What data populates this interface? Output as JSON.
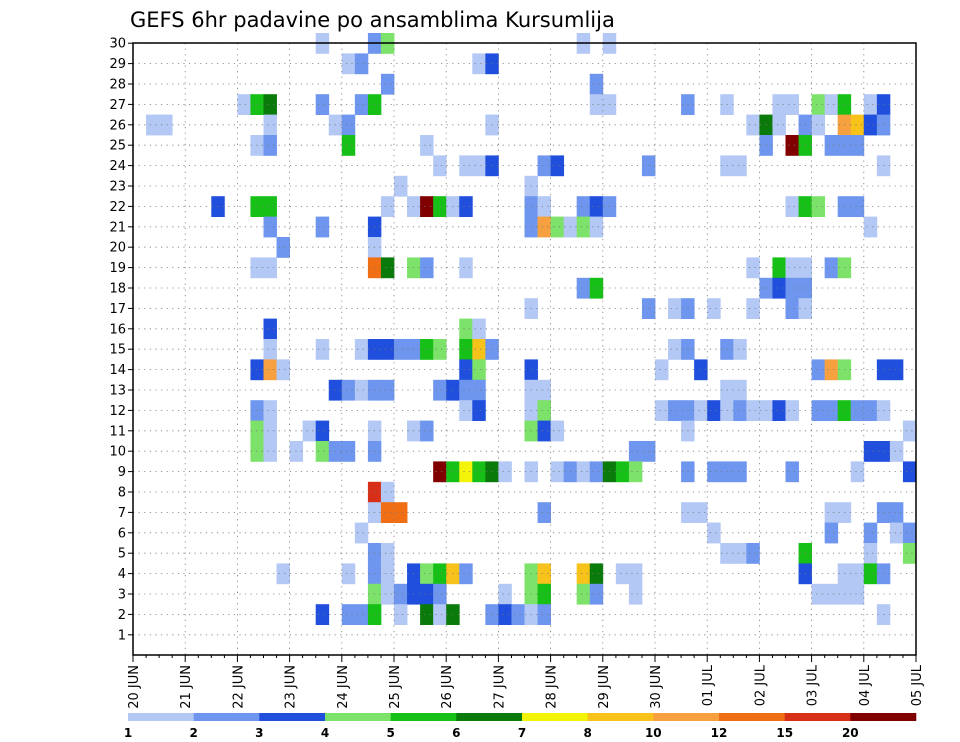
{
  "chart_data": {
    "type": "heatmap",
    "title": "GEFS 6hr padavine po ansamblima Kursumlija",
    "y_categories": [
      "1",
      "2",
      "3",
      "4",
      "5",
      "6",
      "7",
      "8",
      "9",
      "10",
      "11",
      "12",
      "13",
      "14",
      "15",
      "16",
      "17",
      "18",
      "19",
      "20",
      "21",
      "22",
      "23",
      "24",
      "25",
      "26",
      "27",
      "28",
      "29",
      "30"
    ],
    "x_tick_labels": [
      "20 JUN",
      "21 JUN",
      "22 JUN",
      "23 JUN",
      "24 JUN",
      "25 JUN",
      "26 JUN",
      "27 JUN",
      "28 JUN",
      "29 JUN",
      "30 JUN",
      "01 JUL",
      "02 JUL",
      "03 JUL",
      "04 JUL",
      "05 JUL"
    ],
    "x_axis_note": "60 six-hour steps from 20 JUN to 05 JUL",
    "grid": true,
    "legend": {
      "placement": "bottom",
      "labels": [
        "1",
        "2",
        "3",
        "4",
        "5",
        "6",
        "7",
        "8",
        "10",
        "12",
        "15",
        "20"
      ],
      "colors": [
        "#b3c8f5",
        "#6e96ee",
        "#1f4fdc",
        "#7de26a",
        "#16c016",
        "#0a7a0a",
        "#f4f40a",
        "#f7c21a",
        "#f7a040",
        "#f06e14",
        "#d83018",
        "#800000"
      ]
    },
    "cells": [
      [
        14,
        30,
        1
      ],
      [
        18,
        30,
        2
      ],
      [
        19,
        30,
        4
      ],
      [
        34,
        30,
        1
      ],
      [
        36,
        30,
        1
      ],
      [
        16,
        29,
        1
      ],
      [
        17,
        29,
        2
      ],
      [
        26,
        29,
        1
      ],
      [
        27,
        29,
        3
      ],
      [
        19,
        28,
        2
      ],
      [
        35,
        28,
        2
      ],
      [
        8,
        27,
        1
      ],
      [
        9,
        27,
        5
      ],
      [
        10,
        27,
        6
      ],
      [
        14,
        27,
        2
      ],
      [
        17,
        27,
        2
      ],
      [
        18,
        27,
        5
      ],
      [
        35,
        27,
        1
      ],
      [
        36,
        27,
        1
      ],
      [
        42,
        27,
        2
      ],
      [
        45,
        27,
        1
      ],
      [
        49,
        27,
        1
      ],
      [
        50,
        27,
        1
      ],
      [
        52,
        27,
        4
      ],
      [
        53,
        27,
        1
      ],
      [
        54,
        27,
        5
      ],
      [
        56,
        27,
        1
      ],
      [
        57,
        27,
        3
      ],
      [
        1,
        26,
        1
      ],
      [
        2,
        26,
        1
      ],
      [
        10,
        26,
        1
      ],
      [
        15,
        26,
        1
      ],
      [
        16,
        26,
        2
      ],
      [
        27,
        26,
        1
      ],
      [
        47,
        26,
        1
      ],
      [
        48,
        26,
        6
      ],
      [
        49,
        26,
        1
      ],
      [
        51,
        26,
        2
      ],
      [
        52,
        26,
        1
      ],
      [
        54,
        26,
        9
      ],
      [
        55,
        26,
        8
      ],
      [
        56,
        26,
        3
      ],
      [
        57,
        26,
        2
      ],
      [
        9,
        25,
        1
      ],
      [
        10,
        25,
        2
      ],
      [
        16,
        25,
        5
      ],
      [
        22,
        25,
        1
      ],
      [
        48,
        25,
        2
      ],
      [
        50,
        25,
        12
      ],
      [
        51,
        25,
        5
      ],
      [
        53,
        25,
        2
      ],
      [
        54,
        25,
        2
      ],
      [
        55,
        25,
        2
      ],
      [
        23,
        24,
        1
      ],
      [
        25,
        24,
        1
      ],
      [
        26,
        24,
        1
      ],
      [
        27,
        24,
        3
      ],
      [
        31,
        24,
        2
      ],
      [
        32,
        24,
        3
      ],
      [
        39,
        24,
        2
      ],
      [
        45,
        24,
        1
      ],
      [
        46,
        24,
        1
      ],
      [
        57,
        24,
        1
      ],
      [
        20,
        23,
        1
      ],
      [
        30,
        23,
        1
      ],
      [
        6,
        22,
        3
      ],
      [
        9,
        22,
        5
      ],
      [
        10,
        22,
        5
      ],
      [
        19,
        22,
        1
      ],
      [
        21,
        22,
        1
      ],
      [
        22,
        22,
        12
      ],
      [
        23,
        22,
        5
      ],
      [
        24,
        22,
        1
      ],
      [
        25,
        22,
        3
      ],
      [
        30,
        22,
        2
      ],
      [
        31,
        22,
        1
      ],
      [
        34,
        22,
        2
      ],
      [
        35,
        22,
        3
      ],
      [
        36,
        22,
        2
      ],
      [
        50,
        22,
        1
      ],
      [
        51,
        22,
        5
      ],
      [
        52,
        22,
        4
      ],
      [
        54,
        22,
        2
      ],
      [
        55,
        22,
        2
      ],
      [
        10,
        21,
        2
      ],
      [
        14,
        21,
        2
      ],
      [
        18,
        21,
        3
      ],
      [
        30,
        21,
        2
      ],
      [
        31,
        21,
        9
      ],
      [
        32,
        21,
        4
      ],
      [
        33,
        21,
        1
      ],
      [
        34,
        21,
        4
      ],
      [
        35,
        21,
        1
      ],
      [
        56,
        21,
        1
      ],
      [
        11,
        20,
        2
      ],
      [
        18,
        20,
        1
      ],
      [
        9,
        19,
        1
      ],
      [
        10,
        19,
        1
      ],
      [
        18,
        19,
        10
      ],
      [
        19,
        19,
        6
      ],
      [
        21,
        19,
        4
      ],
      [
        22,
        19,
        2
      ],
      [
        25,
        19,
        1
      ],
      [
        47,
        19,
        1
      ],
      [
        49,
        19,
        5
      ],
      [
        50,
        19,
        1
      ],
      [
        51,
        19,
        1
      ],
      [
        53,
        19,
        2
      ],
      [
        54,
        19,
        4
      ],
      [
        34,
        18,
        2
      ],
      [
        35,
        18,
        5
      ],
      [
        48,
        18,
        2
      ],
      [
        49,
        18,
        3
      ],
      [
        50,
        18,
        2
      ],
      [
        51,
        18,
        2
      ],
      [
        30,
        17,
        1
      ],
      [
        39,
        17,
        2
      ],
      [
        41,
        17,
        1
      ],
      [
        42,
        17,
        2
      ],
      [
        44,
        17,
        1
      ],
      [
        47,
        17,
        1
      ],
      [
        50,
        17,
        2
      ],
      [
        51,
        17,
        1
      ],
      [
        10,
        16,
        3
      ],
      [
        25,
        16,
        4
      ],
      [
        26,
        16,
        1
      ],
      [
        10,
        15,
        1
      ],
      [
        14,
        15,
        1
      ],
      [
        17,
        15,
        1
      ],
      [
        18,
        15,
        3
      ],
      [
        19,
        15,
        3
      ],
      [
        20,
        15,
        2
      ],
      [
        21,
        15,
        2
      ],
      [
        22,
        15,
        5
      ],
      [
        23,
        15,
        4
      ],
      [
        25,
        15,
        5
      ],
      [
        26,
        15,
        8
      ],
      [
        27,
        15,
        2
      ],
      [
        41,
        15,
        1
      ],
      [
        42,
        15,
        2
      ],
      [
        45,
        15,
        2
      ],
      [
        46,
        15,
        1
      ],
      [
        9,
        14,
        3
      ],
      [
        10,
        14,
        9
      ],
      [
        11,
        14,
        1
      ],
      [
        25,
        14,
        3
      ],
      [
        26,
        14,
        4
      ],
      [
        30,
        14,
        3
      ],
      [
        40,
        14,
        1
      ],
      [
        43,
        14,
        3
      ],
      [
        52,
        14,
        2
      ],
      [
        53,
        14,
        9
      ],
      [
        54,
        14,
        4
      ],
      [
        57,
        14,
        3
      ],
      [
        58,
        14,
        3
      ],
      [
        15,
        13,
        3
      ],
      [
        16,
        13,
        2
      ],
      [
        17,
        13,
        1
      ],
      [
        18,
        13,
        2
      ],
      [
        19,
        13,
        2
      ],
      [
        23,
        13,
        2
      ],
      [
        24,
        13,
        3
      ],
      [
        25,
        13,
        2
      ],
      [
        26,
        13,
        2
      ],
      [
        30,
        13,
        1
      ],
      [
        31,
        13,
        1
      ],
      [
        45,
        13,
        1
      ],
      [
        46,
        13,
        1
      ],
      [
        9,
        12,
        2
      ],
      [
        10,
        12,
        1
      ],
      [
        25,
        12,
        1
      ],
      [
        26,
        12,
        3
      ],
      [
        30,
        12,
        1
      ],
      [
        31,
        12,
        4
      ],
      [
        40,
        12,
        1
      ],
      [
        41,
        12,
        2
      ],
      [
        42,
        12,
        2
      ],
      [
        43,
        12,
        1
      ],
      [
        44,
        12,
        3
      ],
      [
        45,
        12,
        1
      ],
      [
        46,
        12,
        2
      ],
      [
        47,
        12,
        1
      ],
      [
        48,
        12,
        1
      ],
      [
        49,
        12,
        3
      ],
      [
        50,
        12,
        1
      ],
      [
        52,
        12,
        2
      ],
      [
        53,
        12,
        2
      ],
      [
        54,
        12,
        5
      ],
      [
        55,
        12,
        2
      ],
      [
        56,
        12,
        2
      ],
      [
        57,
        12,
        1
      ],
      [
        9,
        11,
        4
      ],
      [
        10,
        11,
        1
      ],
      [
        13,
        11,
        1
      ],
      [
        14,
        11,
        3
      ],
      [
        18,
        11,
        1
      ],
      [
        21,
        11,
        1
      ],
      [
        22,
        11,
        2
      ],
      [
        30,
        11,
        4
      ],
      [
        31,
        11,
        3
      ],
      [
        32,
        11,
        1
      ],
      [
        42,
        11,
        1
      ],
      [
        59,
        11,
        1
      ],
      [
        9,
        10,
        4
      ],
      [
        10,
        10,
        1
      ],
      [
        12,
        10,
        1
      ],
      [
        14,
        10,
        4
      ],
      [
        15,
        10,
        2
      ],
      [
        16,
        10,
        2
      ],
      [
        18,
        10,
        2
      ],
      [
        38,
        10,
        2
      ],
      [
        39,
        10,
        2
      ],
      [
        56,
        10,
        3
      ],
      [
        57,
        10,
        3
      ],
      [
        58,
        10,
        1
      ],
      [
        23,
        9,
        12
      ],
      [
        24,
        9,
        5
      ],
      [
        25,
        9,
        7
      ],
      [
        26,
        9,
        5
      ],
      [
        27,
        9,
        6
      ],
      [
        28,
        9,
        1
      ],
      [
        30,
        9,
        1
      ],
      [
        32,
        9,
        1
      ],
      [
        33,
        9,
        2
      ],
      [
        34,
        9,
        1
      ],
      [
        35,
        9,
        2
      ],
      [
        36,
        9,
        6
      ],
      [
        37,
        9,
        5
      ],
      [
        38,
        9,
        4
      ],
      [
        42,
        9,
        2
      ],
      [
        44,
        9,
        2
      ],
      [
        45,
        9,
        2
      ],
      [
        46,
        9,
        2
      ],
      [
        50,
        9,
        2
      ],
      [
        55,
        9,
        1
      ],
      [
        59,
        9,
        3
      ],
      [
        18,
        8,
        11
      ],
      [
        19,
        8,
        1
      ],
      [
        18,
        7,
        1
      ],
      [
        19,
        7,
        10
      ],
      [
        20,
        7,
        10
      ],
      [
        31,
        7,
        2
      ],
      [
        42,
        7,
        1
      ],
      [
        43,
        7,
        1
      ],
      [
        53,
        7,
        1
      ],
      [
        54,
        7,
        1
      ],
      [
        57,
        7,
        2
      ],
      [
        58,
        7,
        2
      ],
      [
        17,
        6,
        1
      ],
      [
        44,
        6,
        1
      ],
      [
        53,
        6,
        2
      ],
      [
        56,
        6,
        2
      ],
      [
        58,
        6,
        1
      ],
      [
        59,
        6,
        2
      ],
      [
        18,
        5,
        2
      ],
      [
        19,
        5,
        1
      ],
      [
        45,
        5,
        1
      ],
      [
        46,
        5,
        1
      ],
      [
        47,
        5,
        2
      ],
      [
        51,
        5,
        5
      ],
      [
        56,
        5,
        1
      ],
      [
        59,
        5,
        4
      ],
      [
        11,
        4,
        1
      ],
      [
        16,
        4,
        1
      ],
      [
        18,
        4,
        2
      ],
      [
        19,
        4,
        1
      ],
      [
        21,
        4,
        3
      ],
      [
        22,
        4,
        4
      ],
      [
        23,
        4,
        5
      ],
      [
        24,
        4,
        8
      ],
      [
        25,
        4,
        2
      ],
      [
        30,
        4,
        4
      ],
      [
        31,
        4,
        8
      ],
      [
        34,
        4,
        8
      ],
      [
        35,
        4,
        6
      ],
      [
        37,
        4,
        1
      ],
      [
        38,
        4,
        1
      ],
      [
        51,
        4,
        3
      ],
      [
        54,
        4,
        1
      ],
      [
        55,
        4,
        1
      ],
      [
        56,
        4,
        5
      ],
      [
        57,
        4,
        2
      ],
      [
        18,
        3,
        4
      ],
      [
        19,
        3,
        1
      ],
      [
        20,
        3,
        2
      ],
      [
        21,
        3,
        3
      ],
      [
        22,
        3,
        3
      ],
      [
        23,
        3,
        2
      ],
      [
        28,
        3,
        1
      ],
      [
        30,
        3,
        4
      ],
      [
        31,
        3,
        5
      ],
      [
        34,
        3,
        4
      ],
      [
        35,
        3,
        2
      ],
      [
        38,
        3,
        1
      ],
      [
        52,
        3,
        1
      ],
      [
        53,
        3,
        1
      ],
      [
        54,
        3,
        1
      ],
      [
        55,
        3,
        1
      ],
      [
        14,
        2,
        3
      ],
      [
        16,
        2,
        2
      ],
      [
        17,
        2,
        2
      ],
      [
        18,
        2,
        5
      ],
      [
        20,
        2,
        1
      ],
      [
        22,
        2,
        6
      ],
      [
        23,
        2,
        1
      ],
      [
        24,
        2,
        6
      ],
      [
        27,
        2,
        2
      ],
      [
        28,
        2,
        3
      ],
      [
        29,
        2,
        2
      ],
      [
        30,
        2,
        1
      ],
      [
        31,
        2,
        2
      ],
      [
        57,
        2,
        1
      ]
    ]
  }
}
